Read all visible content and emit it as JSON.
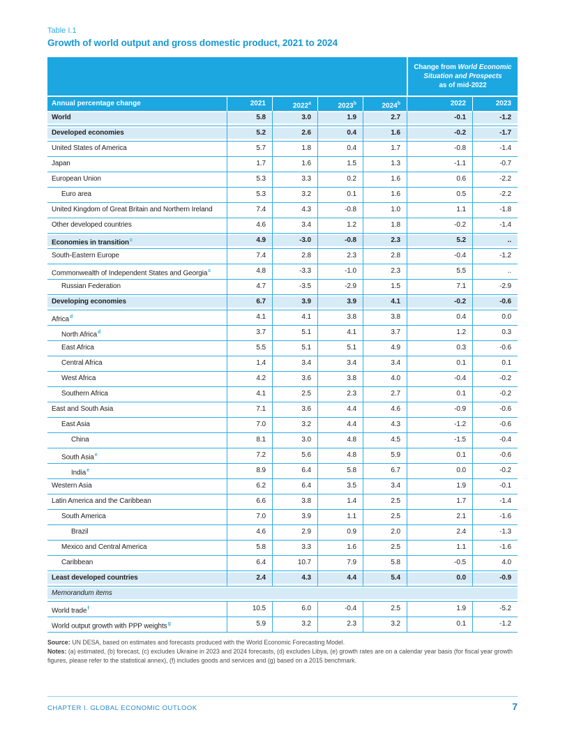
{
  "page": {
    "table_label": "Table I.1",
    "title": "Growth of world output and gross domestic product, 2021 to 2024",
    "footer": {
      "chapter": "CHAPTER I. GLOBAL ECONOMIC OUTLOOK",
      "page_number": "7"
    }
  },
  "colors": {
    "header_blue": "#1ca7e1",
    "shaded_row": "#d7ebf7",
    "grid_line": "#2face3",
    "footnote_cyan": "#29abe2",
    "title_blue": "#1697d6",
    "footer_blue": "#2287c9"
  },
  "table": {
    "change_header": {
      "line1_regular": "Change from ",
      "line1_italic": "World Economic",
      "line2_italic": "Situation and Prospects",
      "line3": "as of mid-2022"
    },
    "columns": {
      "label": "Annual percentage change",
      "years": [
        {
          "text": "2021",
          "sup": ""
        },
        {
          "text": "2022",
          "sup": "a"
        },
        {
          "text": "2023",
          "sup": "b"
        },
        {
          "text": "2024",
          "sup": "b"
        }
      ],
      "change_years": [
        "2022",
        "2023"
      ]
    },
    "rows": [
      {
        "label": "World",
        "sup": "",
        "indent": 0,
        "style": "section",
        "values": [
          "5.8",
          "3.0",
          "1.9",
          "2.7",
          "-0.1",
          "-1.2"
        ]
      },
      {
        "label": "Developed economies",
        "sup": "",
        "indent": 0,
        "style": "section",
        "values": [
          "5.2",
          "2.6",
          "0.4",
          "1.6",
          "-0.2",
          "-1.7"
        ]
      },
      {
        "label": "United States of America",
        "sup": "",
        "indent": 0,
        "style": "",
        "values": [
          "5.7",
          "1.8",
          "0.4",
          "1.7",
          "-0.8",
          "-1.4"
        ]
      },
      {
        "label": "Japan",
        "sup": "",
        "indent": 0,
        "style": "",
        "values": [
          "1.7",
          "1.6",
          "1.5",
          "1.3",
          "-1.1",
          "-0.7"
        ]
      },
      {
        "label": "European Union",
        "sup": "",
        "indent": 0,
        "style": "",
        "values": [
          "5.3",
          "3.3",
          "0.2",
          "1.6",
          "0.6",
          "-2.2"
        ]
      },
      {
        "label": "Euro area",
        "sup": "",
        "indent": 1,
        "style": "",
        "values": [
          "5.3",
          "3.2",
          "0.1",
          "1.6",
          "0.5",
          "-2.2"
        ]
      },
      {
        "label": "United Kingdom of Great Britain and Northern Ireland",
        "sup": "",
        "indent": 0,
        "style": "",
        "values": [
          "7.4",
          "4.3",
          "-0.8",
          "1.0",
          "1.1",
          "-1.8"
        ]
      },
      {
        "label": "Other developed countries",
        "sup": "",
        "indent": 0,
        "style": "",
        "values": [
          "4.6",
          "3.4",
          "1.2",
          "1.8",
          "-0.2",
          "-1.4"
        ]
      },
      {
        "label": "Economies in transition",
        "sup": "c",
        "indent": 0,
        "style": "section",
        "values": [
          "4.9",
          "-3.0",
          "-0.8",
          "2.3",
          "5.2",
          ".."
        ]
      },
      {
        "label": "South-Eastern Europe",
        "sup": "",
        "indent": 0,
        "style": "",
        "values": [
          "7.4",
          "2.8",
          "2.3",
          "2.8",
          "-0.4",
          "-1.2"
        ]
      },
      {
        "label": "Commonwealth of Independent States and Georgia",
        "sup": "c",
        "indent": 0,
        "style": "",
        "values": [
          "4.8",
          "-3.3",
          "-1.0",
          "2.3",
          "5.5",
          ".."
        ]
      },
      {
        "label": "Russian Federation",
        "sup": "",
        "indent": 1,
        "style": "",
        "values": [
          "4.7",
          "-3.5",
          "-2.9",
          "1.5",
          "7.1",
          "-2.9"
        ]
      },
      {
        "label": "Developing economies",
        "sup": "",
        "indent": 0,
        "style": "section",
        "values": [
          "6.7",
          "3.9",
          "3.9",
          "4.1",
          "-0.2",
          "-0.6"
        ]
      },
      {
        "label": "Africa",
        "sup": "d",
        "indent": 0,
        "style": "",
        "values": [
          "4.1",
          "4.1",
          "3.8",
          "3.8",
          "0.4",
          "0.0"
        ]
      },
      {
        "label": "North Africa",
        "sup": "d",
        "indent": 1,
        "style": "",
        "values": [
          "3.7",
          "5.1",
          "4.1",
          "3.7",
          "1.2",
          "0.3"
        ]
      },
      {
        "label": "East Africa",
        "sup": "",
        "indent": 1,
        "style": "",
        "values": [
          "5.5",
          "5.1",
          "5.1",
          "4.9",
          "0.3",
          "-0.6"
        ]
      },
      {
        "label": "Central Africa",
        "sup": "",
        "indent": 1,
        "style": "",
        "values": [
          "1.4",
          "3.4",
          "3.4",
          "3.4",
          "0.1",
          "0.1"
        ]
      },
      {
        "label": "West Africa",
        "sup": "",
        "indent": 1,
        "style": "",
        "values": [
          "4.2",
          "3.6",
          "3.8",
          "4.0",
          "-0.4",
          "-0.2"
        ]
      },
      {
        "label": "Southern Africa",
        "sup": "",
        "indent": 1,
        "style": "",
        "values": [
          "4.1",
          "2.5",
          "2.3",
          "2.7",
          "0.1",
          "-0.2"
        ]
      },
      {
        "label": "East and South Asia",
        "sup": "",
        "indent": 0,
        "style": "",
        "values": [
          "7.1",
          "3.6",
          "4.4",
          "4.6",
          "-0.9",
          "-0.6"
        ]
      },
      {
        "label": "East Asia",
        "sup": "",
        "indent": 1,
        "style": "",
        "values": [
          "7.0",
          "3.2",
          "4.4",
          "4.3",
          "-1.2",
          "-0.6"
        ]
      },
      {
        "label": "China",
        "sup": "",
        "indent": 2,
        "style": "",
        "values": [
          "8.1",
          "3.0",
          "4.8",
          "4.5",
          "-1.5",
          "-0.4"
        ]
      },
      {
        "label": "South Asia",
        "sup": "e",
        "indent": 1,
        "style": "",
        "values": [
          "7.2",
          "5.6",
          "4.8",
          "5.9",
          "0.1",
          "-0.6"
        ]
      },
      {
        "label": "India",
        "sup": "e",
        "indent": 2,
        "style": "",
        "values": [
          "8.9",
          "6.4",
          "5.8",
          "6.7",
          "0.0",
          "-0.2"
        ]
      },
      {
        "label": "Western Asia",
        "sup": "",
        "indent": 0,
        "style": "",
        "values": [
          "6.2",
          "6.4",
          "3.5",
          "3.4",
          "1.9",
          "-0.1"
        ]
      },
      {
        "label": "Latin America and the Caribbean",
        "sup": "",
        "indent": 0,
        "style": "",
        "values": [
          "6.6",
          "3.8",
          "1.4",
          "2.5",
          "1.7",
          "-1.4"
        ]
      },
      {
        "label": "South America",
        "sup": "",
        "indent": 1,
        "style": "",
        "values": [
          "7.0",
          "3.9",
          "1.1",
          "2.5",
          "2.1",
          "-1.6"
        ]
      },
      {
        "label": "Brazil",
        "sup": "",
        "indent": 2,
        "style": "",
        "values": [
          "4.6",
          "2.9",
          "0.9",
          "2.0",
          "2.4",
          "-1.3"
        ]
      },
      {
        "label": "Mexico and Central America",
        "sup": "",
        "indent": 1,
        "style": "",
        "values": [
          "5.8",
          "3.3",
          "1.6",
          "2.5",
          "1.1",
          "-1.6"
        ]
      },
      {
        "label": "Caribbean",
        "sup": "",
        "indent": 1,
        "style": "",
        "values": [
          "6.4",
          "10.7",
          "7.9",
          "5.8",
          "-0.5",
          "4.0"
        ]
      },
      {
        "label": "Least developed countries",
        "sup": "",
        "indent": 0,
        "style": "section",
        "values": [
          "2.4",
          "4.3",
          "4.4",
          "5.4",
          "0.0",
          "-0.9"
        ]
      },
      {
        "label": "Memorandum items",
        "sup": "",
        "indent": 0,
        "style": "memo",
        "values": []
      },
      {
        "label": "World trade",
        "sup": "f",
        "indent": 0,
        "style": "",
        "values": [
          "10.5",
          "6.0",
          "-0.4",
          "2.5",
          "1.9",
          "-5.2"
        ]
      },
      {
        "label": "World output growth with PPP weights",
        "sup": "g",
        "indent": 0,
        "style": "",
        "values": [
          "5.9",
          "3.2",
          "2.3",
          "3.2",
          "0.1",
          "-1.2"
        ]
      }
    ]
  },
  "notes": {
    "source_label": "Source:",
    "source_text": " UN DESA, based on estimates and forecasts produced with the World Economic Forecasting Model.",
    "notes_label": "Notes:",
    "notes_text": " (a) estimated, (b) forecast, (c) excludes Ukraine in 2023 and 2024 forecasts, (d) excludes Libya, (e) growth rates are on a calendar year basis (for fiscal year growth figures, please refer to the statistical annex), (f) includes goods and services and (g) based on a 2015 benchmark."
  }
}
